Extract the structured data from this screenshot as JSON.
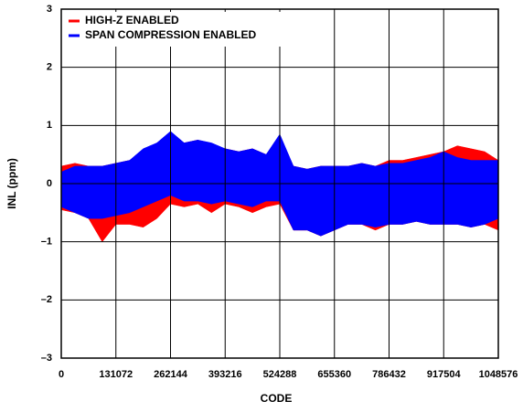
{
  "chart_data": {
    "type": "band",
    "xlabel": "CODE",
    "ylabel": "INL (ppm)",
    "xlim": [
      0,
      1048576
    ],
    "xticks": [
      0,
      131072,
      262144,
      393216,
      524288,
      655360,
      786432,
      917504,
      1048576
    ],
    "ylim": [
      -3,
      3
    ],
    "yticks": [
      {
        "value": -3,
        "label": "–3"
      },
      {
        "value": -2,
        "label": "–2"
      },
      {
        "value": -1,
        "label": "–1"
      },
      0,
      1,
      2,
      3
    ],
    "grid": true,
    "legend": "upper left",
    "x": [
      0,
      32768,
      65536,
      98304,
      131072,
      163840,
      196608,
      229376,
      262144,
      294912,
      327680,
      360448,
      393216,
      425984,
      458752,
      491520,
      524288,
      557056,
      589824,
      622592,
      655360,
      688128,
      720896,
      753664,
      786432,
      819200,
      851968,
      884736,
      917504,
      950272,
      983040,
      1015808,
      1048576
    ],
    "series": [
      {
        "name": "HIGH-Z ENABLED",
        "color": "#ff0000",
        "high": [
          0.3,
          0.35,
          0.3,
          0.3,
          0.35,
          0.4,
          0.55,
          0.7,
          0.8,
          0.7,
          0.75,
          0.65,
          0.6,
          0.55,
          0.6,
          0.5,
          0.8,
          0.3,
          0.25,
          0.3,
          0.3,
          0.3,
          0.35,
          0.3,
          0.4,
          0.4,
          0.45,
          0.5,
          0.55,
          0.65,
          0.6,
          0.55,
          0.4
        ],
        "low": [
          -0.45,
          -0.5,
          -0.6,
          -1.0,
          -0.7,
          -0.7,
          -0.75,
          -0.6,
          -0.35,
          -0.4,
          -0.35,
          -0.5,
          -0.35,
          -0.4,
          -0.5,
          -0.4,
          -0.35,
          -0.8,
          -0.8,
          -0.9,
          -0.8,
          -0.7,
          -0.7,
          -0.8,
          -0.7,
          -0.7,
          -0.65,
          -0.7,
          -0.7,
          -0.7,
          -0.75,
          -0.7,
          -0.8
        ]
      },
      {
        "name": "SPAN COMPRESSION ENABLED",
        "color": "#0000ff",
        "high": [
          0.2,
          0.3,
          0.3,
          0.3,
          0.35,
          0.4,
          0.6,
          0.7,
          0.9,
          0.7,
          0.75,
          0.7,
          0.6,
          0.55,
          0.6,
          0.5,
          0.85,
          0.3,
          0.25,
          0.3,
          0.3,
          0.3,
          0.35,
          0.3,
          0.35,
          0.35,
          0.4,
          0.45,
          0.55,
          0.45,
          0.4,
          0.4,
          0.4
        ],
        "low": [
          -0.4,
          -0.5,
          -0.6,
          -0.6,
          -0.55,
          -0.5,
          -0.4,
          -0.3,
          -0.2,
          -0.3,
          -0.3,
          -0.35,
          -0.3,
          -0.35,
          -0.4,
          -0.3,
          -0.3,
          -0.8,
          -0.8,
          -0.9,
          -0.8,
          -0.7,
          -0.7,
          -0.75,
          -0.7,
          -0.7,
          -0.65,
          -0.7,
          -0.7,
          -0.7,
          -0.75,
          -0.7,
          -0.6
        ]
      }
    ]
  }
}
